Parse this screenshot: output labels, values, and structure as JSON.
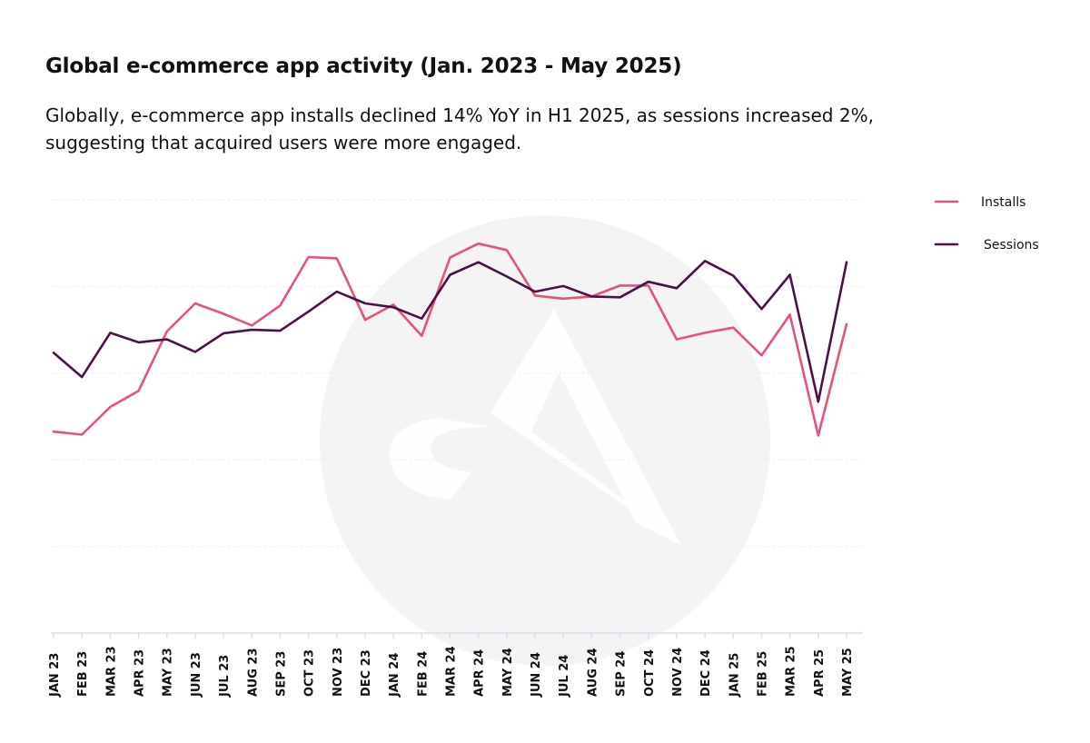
{
  "header": {
    "title": "Global e-commerce app activity (Jan. 2023 - May 2025)",
    "subtitle": "Globally, e-commerce app installs declined 14% YoY in H1 2025, as sessions increased 2%, suggesting that acquired users were more engaged."
  },
  "chart_data": {
    "type": "line",
    "title": "Global e-commerce app activity (Jan. 2023 - May 2025)",
    "xlabel": "",
    "ylabel": "",
    "ylim": [
      0,
      100
    ],
    "grid": true,
    "legend_position": "top-right",
    "categories": [
      "JAN 23",
      "FEB 23",
      "MAR 23",
      "APR 23",
      "MAY 23",
      "JUN 23",
      "JUL 23",
      "AUG 23",
      "SEP 23",
      "OCT 23",
      "NOV 23",
      "DEC 23",
      "JAN 24",
      "FEB 24",
      "MAR 24",
      "APR 24",
      "MAY 24",
      "JUN 24",
      "JUL 24",
      "AUG 24",
      "SEP 24",
      "OCT 24",
      "NOV 24",
      "DEC 24",
      "JAN 25",
      "FEB 25",
      "MAR 25",
      "APR 25",
      "MAY 25"
    ],
    "series": [
      {
        "name": "Installs",
        "color": "#e8517a",
        "values": [
          46.5,
          45.8,
          52.2,
          55.9,
          69.6,
          76.1,
          73.7,
          71.0,
          75.6,
          86.8,
          86.5,
          72.3,
          75.8,
          68.6,
          86.7,
          89.9,
          88.4,
          77.9,
          77.2,
          77.7,
          80.2,
          80.2,
          67.8,
          69.3,
          70.5,
          64.1,
          73.5,
          45.6,
          71.3
        ]
      },
      {
        "name": "Sessions",
        "color": "#4b1248",
        "values": [
          64.7,
          59.1,
          69.3,
          67.1,
          67.8,
          64.9,
          69.2,
          70.0,
          69.8,
          74.2,
          78.8,
          76.1,
          75.2,
          72.6,
          82.7,
          85.6,
          82.3,
          78.8,
          80.1,
          77.7,
          77.5,
          81.1,
          79.6,
          85.9,
          82.5,
          74.8,
          82.7,
          53.4,
          85.6
        ]
      }
    ]
  },
  "style": {
    "grid_color": "#e8e8ee",
    "axis_color": "#dcdcf0",
    "watermark_color": "#f4f4f4"
  }
}
